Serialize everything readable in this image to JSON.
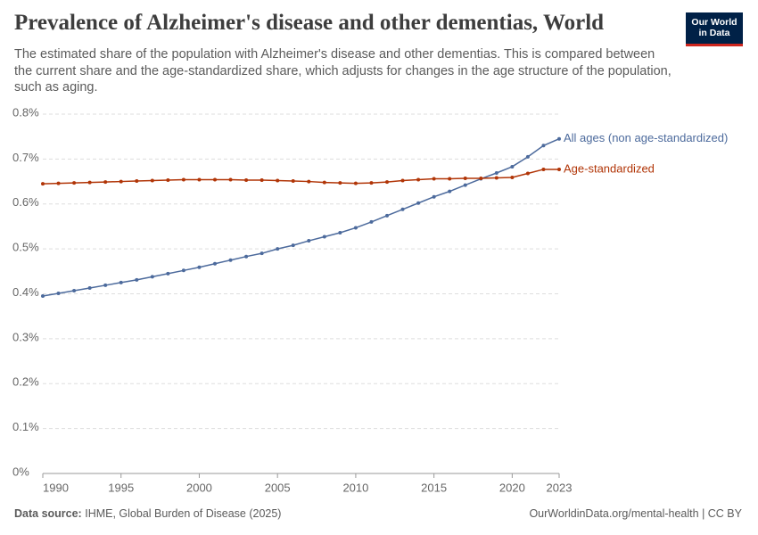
{
  "chart_data": {
    "type": "line",
    "title": "Prevalence of Alzheimer's disease and other dementias, World",
    "subtitle": "The estimated share of the population with Alzheimer's disease and other dementias. This is compared between the current share and the age-standardized share, which adjusts for changes in the age structure of the population, such as aging.",
    "logo": [
      "Our World",
      "in Data"
    ],
    "source_label": "Data source:",
    "source": "IHME, Global Burden of Disease (2025)",
    "footer_right": "OurWorldinData.org/mental-health | CC BY",
    "x": [
      1990,
      1991,
      1992,
      1993,
      1994,
      1995,
      1996,
      1997,
      1998,
      1999,
      2000,
      2001,
      2002,
      2003,
      2004,
      2005,
      2006,
      2007,
      2008,
      2009,
      2010,
      2011,
      2012,
      2013,
      2014,
      2015,
      2016,
      2017,
      2018,
      2019,
      2020,
      2021,
      2022,
      2023
    ],
    "series": [
      {
        "name": "All ages (non age-standardized)",
        "color": "#4c6a9c",
        "values": [
          0.395,
          0.401,
          0.407,
          0.413,
          0.419,
          0.425,
          0.431,
          0.438,
          0.445,
          0.452,
          0.459,
          0.467,
          0.475,
          0.483,
          0.49,
          0.5,
          0.508,
          0.518,
          0.527,
          0.536,
          0.547,
          0.56,
          0.574,
          0.588,
          0.602,
          0.616,
          0.628,
          0.642,
          0.656,
          0.669,
          0.683,
          0.705,
          0.73,
          0.745
        ]
      },
      {
        "name": "Age-standardized",
        "color": "#b13507",
        "values": [
          0.645,
          0.646,
          0.647,
          0.648,
          0.649,
          0.65,
          0.651,
          0.652,
          0.653,
          0.654,
          0.654,
          0.654,
          0.654,
          0.653,
          0.653,
          0.652,
          0.651,
          0.65,
          0.648,
          0.647,
          0.646,
          0.647,
          0.649,
          0.652,
          0.654,
          0.656,
          0.656,
          0.657,
          0.657,
          0.658,
          0.659,
          0.668,
          0.677,
          0.677
        ]
      }
    ],
    "xlim": [
      1990,
      2023
    ],
    "xticks": [
      1990,
      1995,
      2000,
      2005,
      2010,
      2015,
      2020,
      2023
    ],
    "ylim": [
      0,
      0.8
    ],
    "yticks": [
      {
        "value": 0,
        "label": "0%"
      },
      {
        "value": 0.1,
        "label": "0.1%"
      },
      {
        "value": 0.2,
        "label": "0.2%"
      },
      {
        "value": 0.3,
        "label": "0.3%"
      },
      {
        "value": 0.4,
        "label": "0.4%"
      },
      {
        "value": 0.5,
        "label": "0.5%"
      },
      {
        "value": 0.6,
        "label": "0.6%"
      },
      {
        "value": 0.7,
        "label": "0.7%"
      },
      {
        "value": 0.8,
        "label": "0.8%"
      }
    ],
    "grid": true
  }
}
